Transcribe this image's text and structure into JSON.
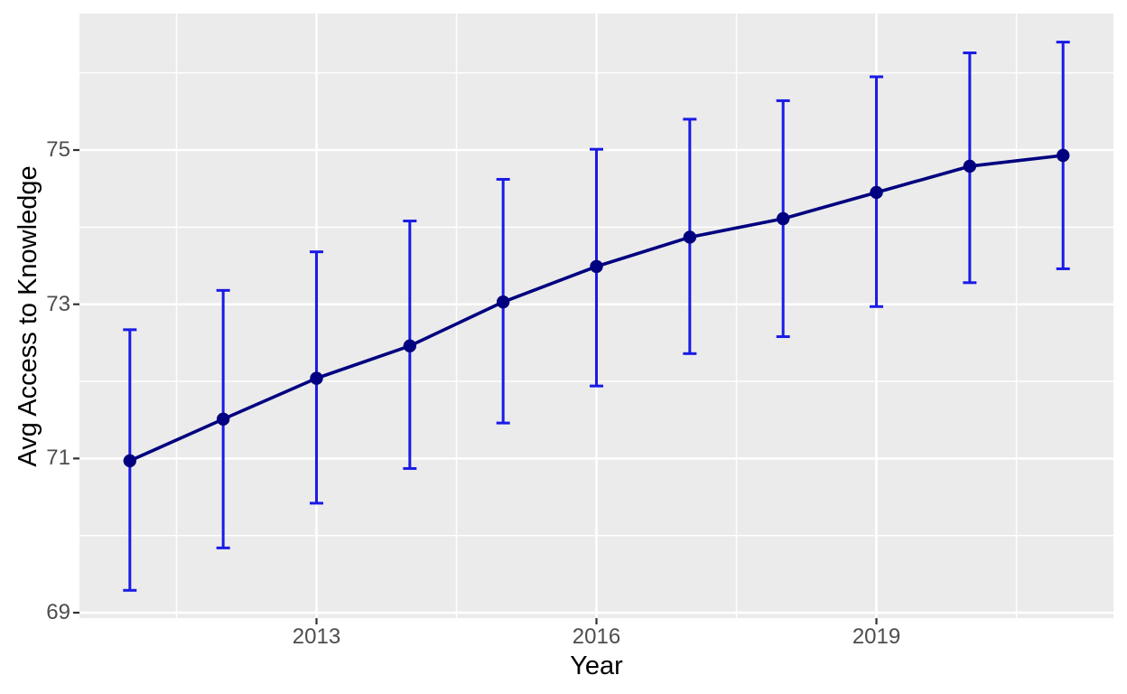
{
  "chart_data": {
    "type": "line",
    "title": "",
    "xlabel": "Year",
    "ylabel": "Avg Access to Knowledge",
    "legend": "none",
    "grid": true,
    "x": [
      2011,
      2012,
      2013,
      2014,
      2015,
      2016,
      2017,
      2018,
      2019,
      2020,
      2021
    ],
    "series": [
      {
        "name": "avg-access-to-knowledge",
        "values": [
          70.97,
          71.51,
          72.04,
          72.46,
          73.03,
          73.49,
          73.87,
          74.11,
          74.45,
          74.79,
          74.93
        ],
        "lower": [
          69.29,
          69.84,
          70.42,
          70.87,
          71.46,
          71.94,
          72.36,
          72.58,
          72.97,
          73.28,
          73.46
        ],
        "upper": [
          72.67,
          73.18,
          73.68,
          74.08,
          74.62,
          75.01,
          75.4,
          75.64,
          75.95,
          76.26,
          76.4
        ]
      }
    ],
    "x_ticks": {
      "values": [
        2013,
        2016,
        2019
      ],
      "labels": [
        "2013",
        "2016",
        "2019"
      ]
    },
    "y_ticks": {
      "values": [
        75,
        73,
        71,
        69
      ],
      "labels": [
        "75",
        "73",
        "71",
        "69"
      ]
    },
    "x_minor": [
      2011.5,
      2014.5,
      2017.5,
      2020.5
    ],
    "y_minor": [
      70,
      72,
      74,
      76
    ],
    "xlim": [
      2010.46,
      2021.54
    ],
    "ylim": [
      68.93,
      76.77
    ],
    "colors": {
      "panel_bg": "#EBEBEB",
      "gridline": "#FFFFFF",
      "errorbar": "#1A1AE6",
      "line": "#000080",
      "point": "#000080",
      "tick_mark": "#333333",
      "axis_text": "#4D4D4D",
      "axis_title": "#000000"
    }
  }
}
